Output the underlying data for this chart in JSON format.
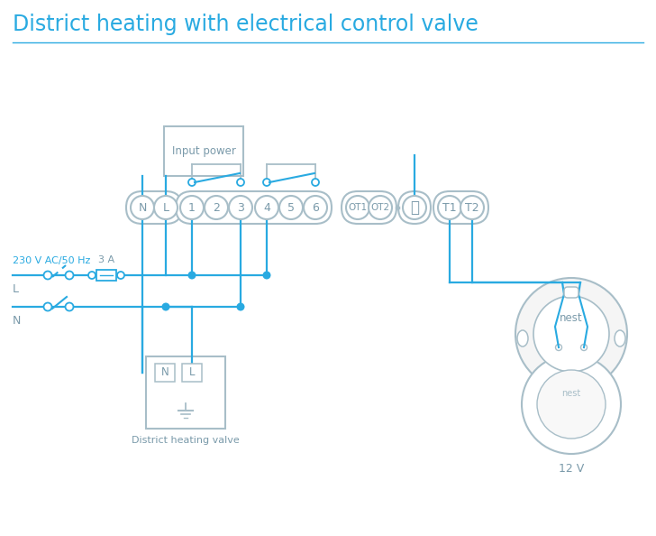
{
  "title": "District heating with electrical control valve",
  "title_color": "#29aae1",
  "title_fontsize": 17,
  "bg_color": "#ffffff",
  "lc": "#29aae1",
  "gc": "#a8bec8",
  "tc": "#7a9aaa",
  "input_power_label": "Input power",
  "district_valve_label": "District heating valve",
  "voltage_label": "230 V AC/50 Hz",
  "fuse_label": "3 A",
  "L_label": "L",
  "N_label": "N",
  "nest_label": "nest",
  "twelve_v_label": "12 V",
  "term_main": [
    "N",
    "L",
    "1",
    "2",
    "3",
    "4",
    "5",
    "6"
  ],
  "term_ot": [
    "OT1",
    "OT2"
  ],
  "term_t": [
    "T1",
    "T2"
  ]
}
